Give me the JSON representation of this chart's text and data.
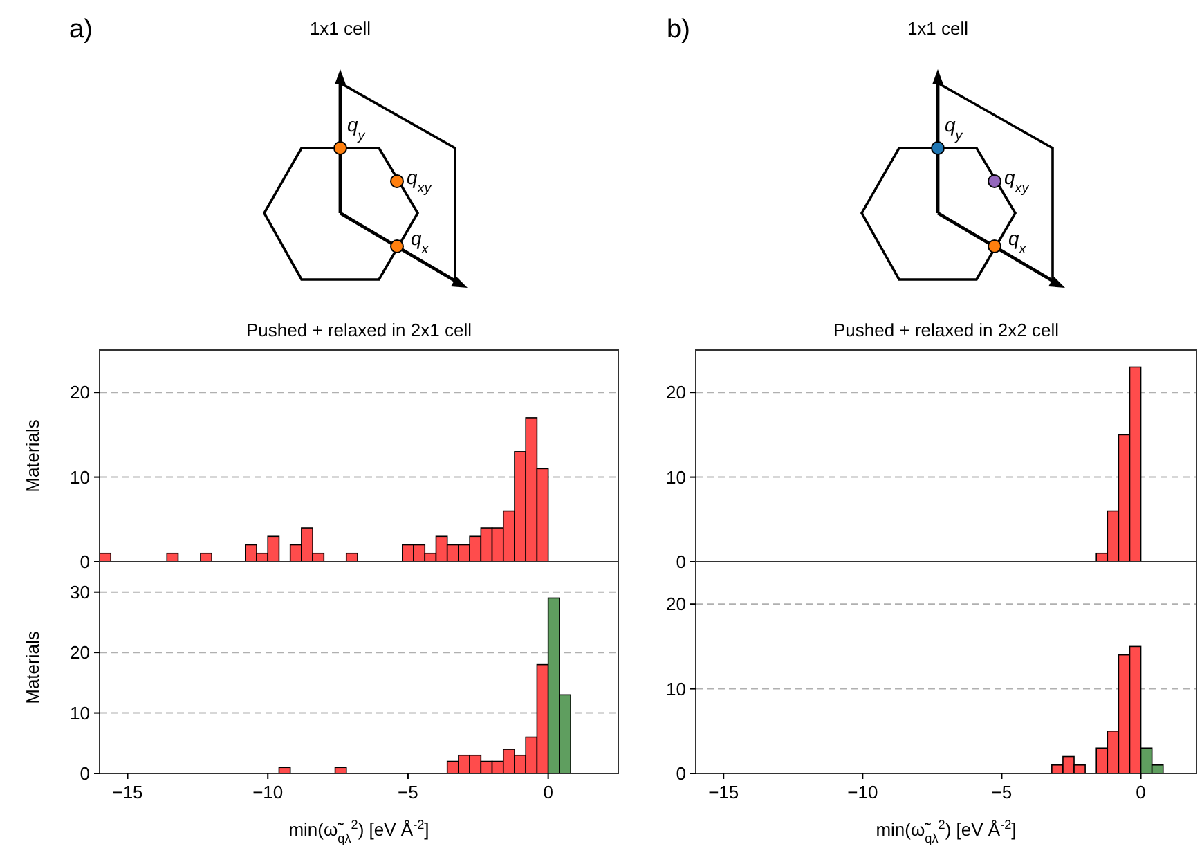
{
  "chart_data": [
    {
      "type": "other",
      "title": "1x1 cell",
      "annotations": [
        "a)",
        "q$_{y}$",
        "q$_{xy}$",
        "q$_{x}$"
      ],
      "colors": [
        "#ff7f0e",
        "#ff7f0e",
        "#ff7f0e"
      ]
    },
    {
      "type": "other",
      "title": "1x1 cell",
      "annotations": [
        "b)",
        "q$_{y}$",
        "q$_{xy}$",
        "q$_{x}$"
      ],
      "colors": [
        "#1f77b4",
        "#9467bd",
        "#ff7f0e"
      ]
    },
    {
      "type": "histogram",
      "title": "Pushed + relaxed in 2x1 cell",
      "ylabel": "Materials",
      "bins": [
        -16,
        -15.6,
        -15.2,
        -14.8,
        -14.4,
        -14,
        -13.6,
        -13.2,
        -12.8,
        -12.4,
        -12,
        -11.6,
        -11.2,
        -10.8,
        -10.4,
        -10,
        -9.6,
        -9.2,
        -8.8,
        -8.4,
        -8,
        -7.6,
        -7.2,
        -6.8,
        -6.4,
        -6,
        -5.6,
        -5.2,
        -4.8,
        -4.4,
        -4,
        -3.6,
        -3.2,
        -2.8,
        -2.4,
        -2,
        -1.6,
        -1.2,
        -0.8,
        -0.4,
        0,
        0.4,
        0.8
      ],
      "series": [
        {
          "color": "#ff4c4c",
          "values": [
            1,
            0,
            0,
            0,
            0,
            0,
            1,
            0,
            0,
            1,
            0,
            0,
            0,
            2,
            1,
            3,
            0,
            2,
            4,
            1,
            0,
            0,
            1,
            0,
            0,
            0,
            0,
            2,
            2,
            1,
            3,
            2,
            2,
            3,
            4,
            4,
            6,
            13,
            17,
            11,
            0,
            0
          ]
        }
      ],
      "xlim": [
        -16,
        2.5
      ],
      "ylim": [
        0,
        25
      ],
      "yticks": [
        0,
        10,
        20
      ],
      "grid": "y",
      "tick_labels": "y"
    },
    {
      "type": "histogram",
      "title": "Pushed + relaxed in 2x2 cell",
      "bins": [
        -16,
        -15.6,
        -15.2,
        -14.8,
        -14.4,
        -14,
        -13.6,
        -13.2,
        -12.8,
        -12.4,
        -12,
        -11.6,
        -11.2,
        -10.8,
        -10.4,
        -10,
        -9.6,
        -9.2,
        -8.8,
        -8.4,
        -8,
        -7.6,
        -7.2,
        -6.8,
        -6.4,
        -6,
        -5.6,
        -5.2,
        -4.8,
        -4.4,
        -4,
        -3.6,
        -3.2,
        -2.8,
        -2.4,
        -2,
        -1.6,
        -1.2,
        -0.8,
        -0.4,
        0,
        0.4,
        0.8
      ],
      "series": [
        {
          "color": "#ff4c4c",
          "values": [
            0,
            0,
            0,
            0,
            0,
            0,
            0,
            0,
            0,
            0,
            0,
            0,
            0,
            0,
            0,
            0,
            0,
            0,
            0,
            0,
            0,
            0,
            0,
            0,
            0,
            0,
            0,
            0,
            0,
            0,
            0,
            0,
            0,
            0,
            0,
            0,
            1,
            6,
            15,
            23,
            0,
            0
          ]
        }
      ],
      "xlim": [
        -16,
        2
      ],
      "ylim": [
        0,
        25
      ],
      "yticks": [
        0,
        10,
        20
      ],
      "grid": "y",
      "tick_labels": "y"
    },
    {
      "type": "histogram",
      "ylabel": "Materials",
      "xlabel": "min(ω̃$_{qλ}$$^{2}$) [eV Å$^{-2}$]",
      "bins": [
        -16,
        -15.6,
        -15.2,
        -14.8,
        -14.4,
        -14,
        -13.6,
        -13.2,
        -12.8,
        -12.4,
        -12,
        -11.6,
        -11.2,
        -10.8,
        -10.4,
        -10,
        -9.6,
        -9.2,
        -8.8,
        -8.4,
        -8,
        -7.6,
        -7.2,
        -6.8,
        -6.4,
        -6,
        -5.6,
        -5.2,
        -4.8,
        -4.4,
        -4,
        -3.6,
        -3.2,
        -2.8,
        -2.4,
        -2,
        -1.6,
        -1.2,
        -0.8,
        -0.4,
        0,
        0.4,
        0.8
      ],
      "series": [
        {
          "color": "#ff4c4c",
          "values": [
            0,
            0,
            0,
            0,
            0,
            0,
            0,
            0,
            0,
            0,
            0,
            0,
            0,
            0,
            0,
            0,
            1,
            0,
            0,
            0,
            0,
            1,
            0,
            0,
            0,
            0,
            0,
            0,
            0,
            0,
            0,
            2,
            3,
            3,
            2,
            2,
            4,
            3,
            6,
            18,
            0,
            0
          ]
        },
        {
          "color": "#5f9e5f",
          "values": [
            0,
            0,
            0,
            0,
            0,
            0,
            0,
            0,
            0,
            0,
            0,
            0,
            0,
            0,
            0,
            0,
            0,
            0,
            0,
            0,
            0,
            0,
            0,
            0,
            0,
            0,
            0,
            0,
            0,
            0,
            0,
            0,
            0,
            0,
            0,
            0,
            0,
            0,
            0,
            0,
            29,
            13
          ]
        }
      ],
      "xlim": [
        -16,
        2.5
      ],
      "ylim": [
        0,
        35
      ],
      "xticks": [
        {
          "value": -15,
          "label": "−15"
        },
        {
          "value": -10,
          "label": "−10"
        },
        {
          "value": -5,
          "label": "−5"
        },
        0
      ],
      "yticks": [
        0,
        10,
        20,
        30
      ],
      "grid": "y"
    },
    {
      "type": "histogram",
      "xlabel": "min(ω̃$_{qλ}$$^{2}$) [eV Å$^{-2}$]",
      "bins": [
        -16,
        -15.6,
        -15.2,
        -14.8,
        -14.4,
        -14,
        -13.6,
        -13.2,
        -12.8,
        -12.4,
        -12,
        -11.6,
        -11.2,
        -10.8,
        -10.4,
        -10,
        -9.6,
        -9.2,
        -8.8,
        -8.4,
        -8,
        -7.6,
        -7.2,
        -6.8,
        -6.4,
        -6,
        -5.6,
        -5.2,
        -4.8,
        -4.4,
        -4,
        -3.6,
        -3.2,
        -2.8,
        -2.4,
        -2,
        -1.6,
        -1.2,
        -0.8,
        -0.4,
        0,
        0.4,
        0.8
      ],
      "series": [
        {
          "color": "#ff4c4c",
          "values": [
            0,
            0,
            0,
            0,
            0,
            0,
            0,
            0,
            0,
            0,
            0,
            0,
            0,
            0,
            0,
            0,
            0,
            0,
            0,
            0,
            0,
            0,
            0,
            0,
            0,
            0,
            0,
            0,
            0,
            0,
            0,
            0,
            1,
            2,
            1,
            0,
            3,
            5,
            14,
            15,
            0,
            0
          ]
        },
        {
          "color": "#5f9e5f",
          "values": [
            0,
            0,
            0,
            0,
            0,
            0,
            0,
            0,
            0,
            0,
            0,
            0,
            0,
            0,
            0,
            0,
            0,
            0,
            0,
            0,
            0,
            0,
            0,
            0,
            0,
            0,
            0,
            0,
            0,
            0,
            0,
            0,
            0,
            0,
            0,
            0,
            0,
            0,
            0,
            0,
            3,
            1
          ]
        }
      ],
      "xlim": [
        -16,
        2
      ],
      "ylim": [
        0,
        25
      ],
      "xticks": [
        {
          "value": -15,
          "label": "−15"
        },
        {
          "value": -10,
          "label": "−10"
        },
        {
          "value": -5,
          "label": "−5"
        },
        0
      ],
      "yticks": [
        0,
        10,
        20
      ],
      "grid": "y"
    }
  ]
}
